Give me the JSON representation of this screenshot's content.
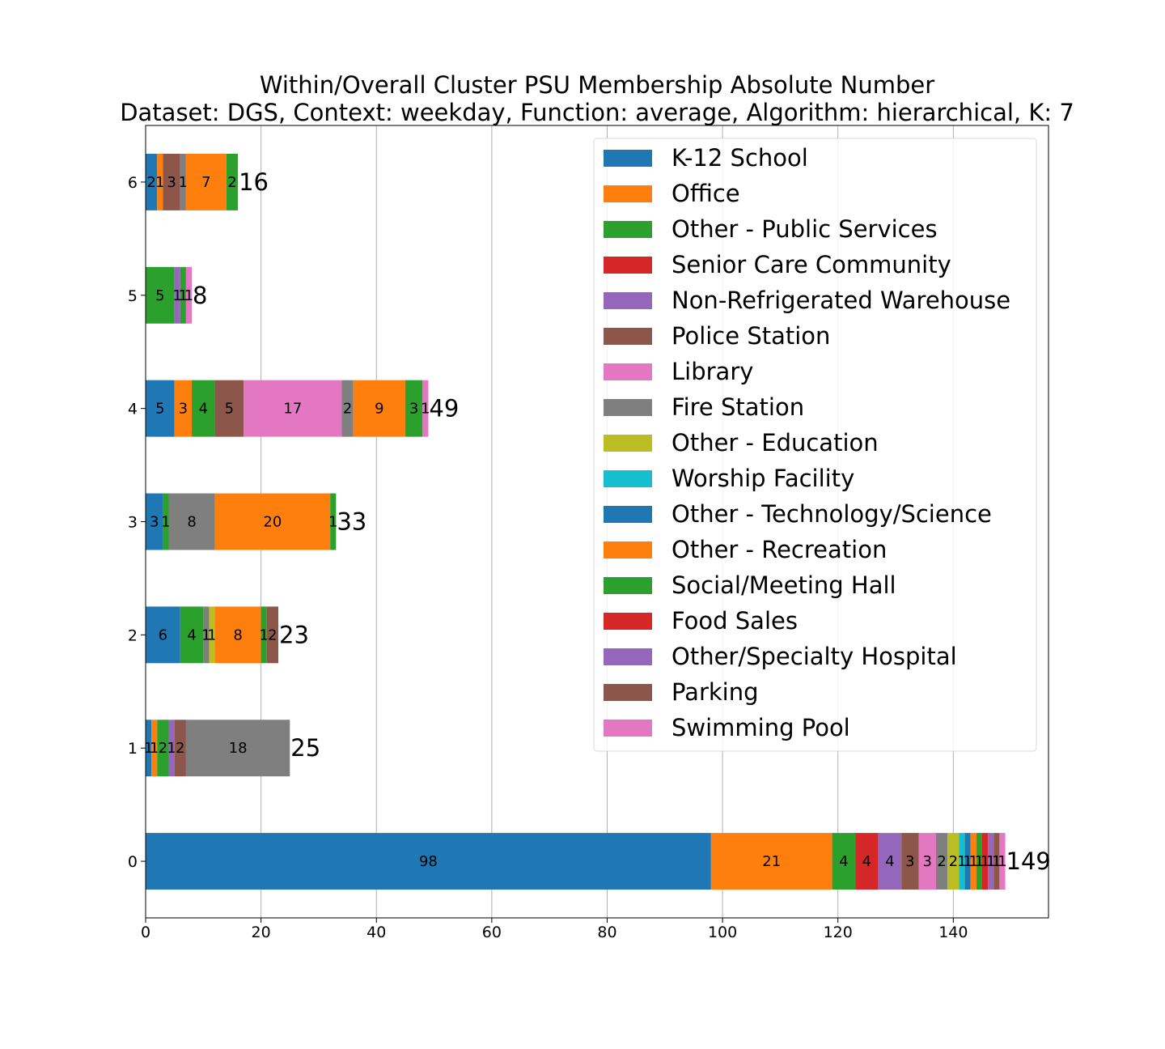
{
  "chart_data": {
    "type": "bar",
    "orientation": "horizontal",
    "stacked": true,
    "title": "Within/Overall Cluster PSU Membership Absolute Number",
    "subtitle": "Dataset: DGS, Context: weekday, Function: average, Algorithm: hierarchical, K: 7",
    "xlabel": "",
    "ylabel": "",
    "xlim": [
      0,
      156.5
    ],
    "xticks": [
      0,
      20,
      40,
      60,
      80,
      100,
      120,
      140
    ],
    "grid": "x",
    "legend_placement": "top-right",
    "categories": [
      "0",
      "1",
      "2",
      "3",
      "4",
      "5",
      "6"
    ],
    "totals": [
      149,
      25,
      23,
      33,
      49,
      8,
      16
    ],
    "legend": [
      {
        "name": "K-12 School",
        "color": "#1f77b4"
      },
      {
        "name": "Office",
        "color": "#ff7f0e"
      },
      {
        "name": "Other - Public Services",
        "color": "#2ca02c"
      },
      {
        "name": "Senior Care Community",
        "color": "#d62728"
      },
      {
        "name": "Non-Refrigerated Warehouse",
        "color": "#9467bd"
      },
      {
        "name": "Police Station",
        "color": "#8c564b"
      },
      {
        "name": "Library",
        "color": "#e377c2"
      },
      {
        "name": "Fire Station",
        "color": "#7f7f7f"
      },
      {
        "name": "Other - Education",
        "color": "#bcbd22"
      },
      {
        "name": "Worship Facility",
        "color": "#17becf"
      },
      {
        "name": "Other - Technology/Science",
        "color": "#1f77b4"
      },
      {
        "name": "Other - Recreation",
        "color": "#ff7f0e"
      },
      {
        "name": "Social/Meeting Hall",
        "color": "#2ca02c"
      },
      {
        "name": "Food Sales",
        "color": "#d62728"
      },
      {
        "name": "Other/Specialty Hospital",
        "color": "#9467bd"
      },
      {
        "name": "Parking",
        "color": "#8c564b"
      },
      {
        "name": "Swimming Pool",
        "color": "#e377c2"
      }
    ],
    "series": [
      {
        "name": "K-12 School",
        "values": [
          98,
          1,
          6,
          3,
          5,
          0,
          2
        ]
      },
      {
        "name": "Office",
        "values": [
          21,
          1,
          0,
          0,
          3,
          0,
          1
        ]
      },
      {
        "name": "Other - Public Services",
        "values": [
          4,
          2,
          4,
          1,
          4,
          5,
          0
        ]
      },
      {
        "name": "Senior Care Community",
        "values": [
          4,
          0,
          0,
          0,
          0,
          0,
          0
        ]
      },
      {
        "name": "Non-Refrigerated Warehouse",
        "values": [
          4,
          1,
          0,
          0,
          0,
          1,
          0
        ]
      },
      {
        "name": "Police Station",
        "values": [
          3,
          2,
          0,
          0,
          5,
          0,
          3
        ]
      },
      {
        "name": "Library",
        "values": [
          3,
          0,
          0,
          0,
          17,
          0,
          0
        ]
      },
      {
        "name": "Fire Station",
        "values": [
          2,
          18,
          1,
          8,
          2,
          0,
          1
        ]
      },
      {
        "name": "Other - Education",
        "values": [
          2,
          0,
          1,
          0,
          0,
          0,
          0
        ]
      },
      {
        "name": "Worship Facility",
        "values": [
          1,
          0,
          0,
          0,
          0,
          0,
          0
        ]
      },
      {
        "name": "Other - Technology/Science",
        "values": [
          1,
          0,
          0,
          0,
          0,
          0,
          0
        ]
      },
      {
        "name": "Other - Recreation",
        "values": [
          1,
          0,
          8,
          20,
          9,
          0,
          7
        ]
      },
      {
        "name": "Social/Meeting Hall",
        "values": [
          1,
          0,
          1,
          1,
          3,
          1,
          2
        ]
      },
      {
        "name": "Food Sales",
        "values": [
          1,
          0,
          0,
          0,
          0,
          0,
          0
        ]
      },
      {
        "name": "Other/Specialty Hospital",
        "values": [
          1,
          0,
          0,
          0,
          0,
          0,
          0
        ]
      },
      {
        "name": "Parking",
        "values": [
          1,
          0,
          2,
          0,
          0,
          0,
          0
        ]
      },
      {
        "name": "Swimming Pool",
        "values": [
          1,
          0,
          0,
          0,
          1,
          1,
          0
        ]
      }
    ]
  }
}
